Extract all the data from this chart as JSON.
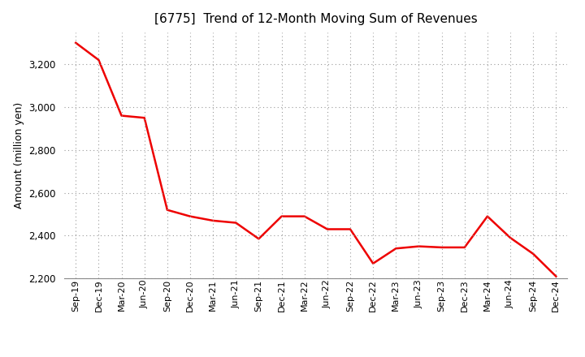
{
  "title": "[6775]  Trend of 12-Month Moving Sum of Revenues",
  "ylabel": "Amount (million yen)",
  "line_color": "#EE0000",
  "line_width": 1.8,
  "background_color": "#FFFFFF",
  "plot_bg_color": "#FFFFFF",
  "grid_color": "#999999",
  "ylim": [
    2200,
    3350
  ],
  "yticks": [
    2200,
    2400,
    2600,
    2800,
    3000,
    3200
  ],
  "x_labels": [
    "Sep-19",
    "Dec-19",
    "Mar-20",
    "Jun-20",
    "Sep-20",
    "Dec-20",
    "Mar-21",
    "Jun-21",
    "Sep-21",
    "Dec-21",
    "Mar-22",
    "Jun-22",
    "Sep-22",
    "Dec-22",
    "Mar-23",
    "Jun-23",
    "Sep-23",
    "Dec-23",
    "Mar-24",
    "Jun-24",
    "Sep-24",
    "Dec-24"
  ],
  "values": [
    3300,
    3220,
    2960,
    2950,
    2520,
    2490,
    2470,
    2460,
    2385,
    2490,
    2490,
    2430,
    2430,
    2270,
    2340,
    2350,
    2345,
    2345,
    2490,
    2390,
    2315,
    2210
  ]
}
